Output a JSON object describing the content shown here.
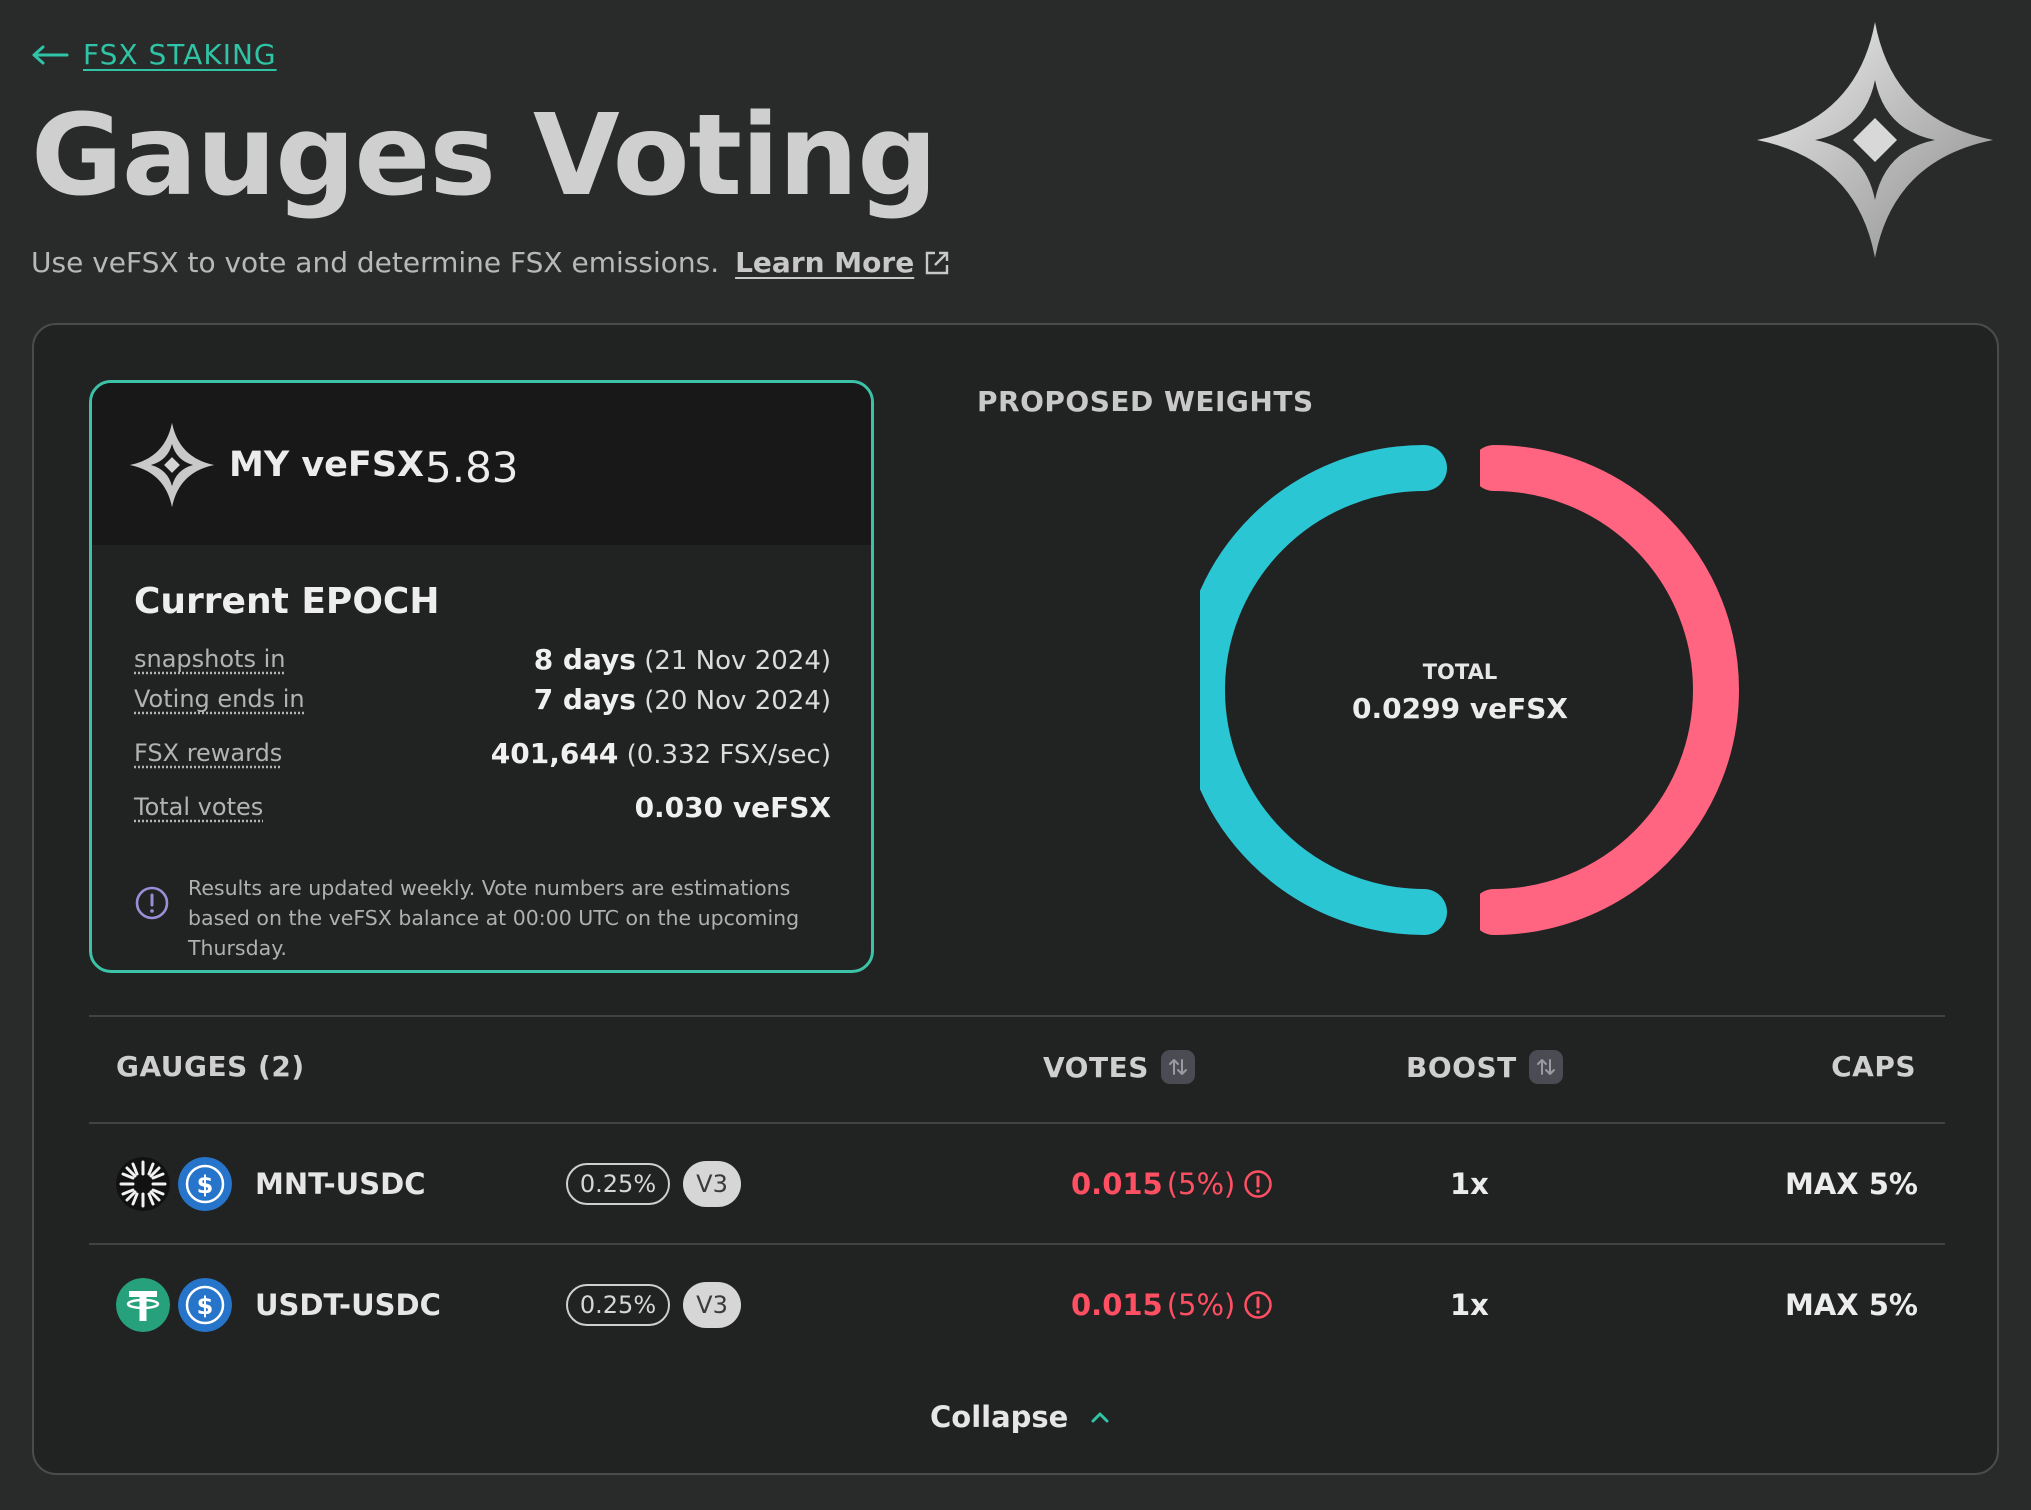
{
  "breadcrumb": {
    "back_label": "FSX STAKING"
  },
  "page": {
    "title": "Gauges Voting",
    "subtitle": "Use veFSX to vote and determine FSX emissions.",
    "learn_more": "Learn More"
  },
  "vefsx_card": {
    "label": "MY veFSX",
    "value": "5.83",
    "epoch_title": "Current EPOCH",
    "rows": [
      {
        "label": "snapshots in",
        "value_bold": "8 days",
        "value_extra": "(21 Nov 2024)"
      },
      {
        "label": "Voting ends in",
        "value_bold": "7 days",
        "value_extra": "(20 Nov 2024)"
      },
      {
        "label": "FSX rewards",
        "value_bold": "401,644",
        "value_extra": "(0.332 FSX/sec)"
      },
      {
        "label": "Total votes",
        "value_bold": "0.030 veFSX",
        "value_extra": ""
      }
    ],
    "info_text": "Results are updated weekly. Vote numbers are estimations based on the veFSX balance at 00:00 UTC on the upcoming Thursday."
  },
  "proposed_weights": {
    "title": "PROPOSED WEIGHTS",
    "total_label": "TOTAL",
    "total_value": "0.0299 veFSX",
    "segments": [
      {
        "name": "MNT-USDC",
        "share": 0.5,
        "color": "#2bc6d4"
      },
      {
        "name": "USDT-USDC",
        "share": 0.5,
        "color": "#ff6480"
      }
    ]
  },
  "table": {
    "headers": {
      "gauges": "GAUGES (2)",
      "votes": "VOTES",
      "boost": "BOOST",
      "caps": "CAPS"
    },
    "rows": [
      {
        "pair": "MNT-USDC",
        "fee": "0.25%",
        "version": "V3",
        "votes": "0.015",
        "votes_pct": "(5%)",
        "boost": "1x",
        "caps": "MAX 5%",
        "token_a_icon": "mantle-icon",
        "token_b_icon": "usdc-icon"
      },
      {
        "pair": "USDT-USDC",
        "fee": "0.25%",
        "version": "V3",
        "votes": "0.015",
        "votes_pct": "(5%)",
        "boost": "1x",
        "caps": "MAX 5%",
        "token_a_icon": "tether-icon",
        "token_b_icon": "usdc-icon"
      }
    ],
    "collapse_label": "Collapse"
  },
  "colors": {
    "accent": "#2ec4a5",
    "votes_warning": "#ff4f63",
    "donut_a": "#2bc6d4",
    "donut_b": "#ff6480"
  }
}
